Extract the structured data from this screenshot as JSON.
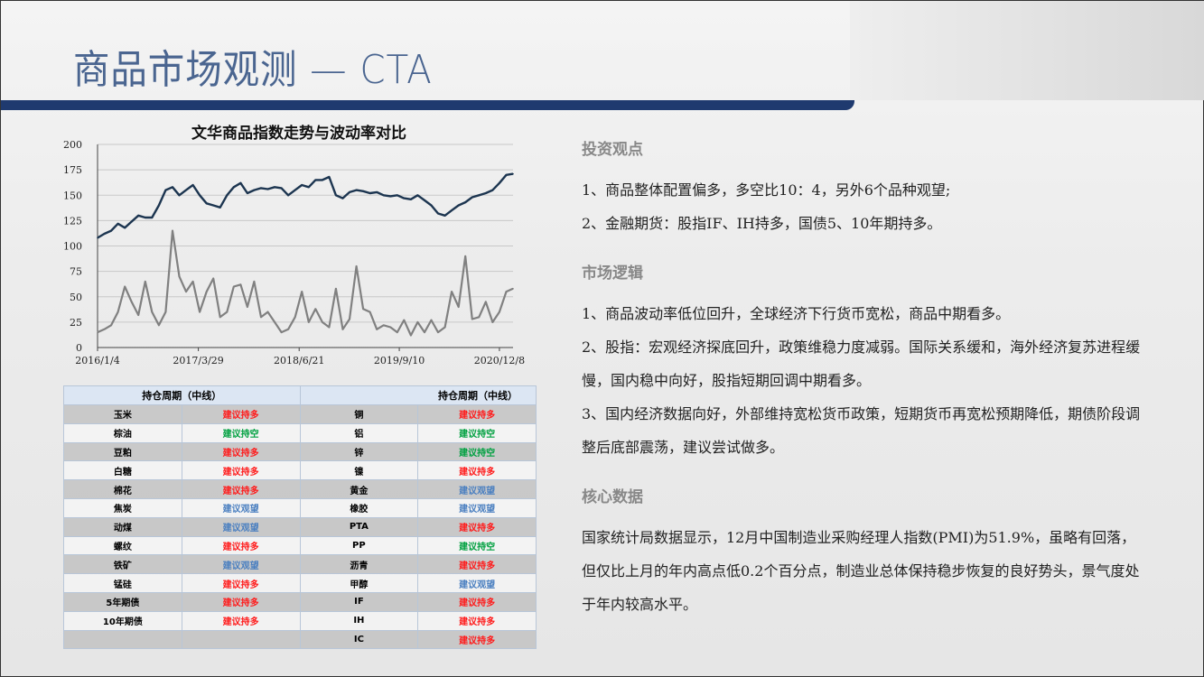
{
  "header": {
    "title": "商品市场观测 — CTA"
  },
  "chart_data": {
    "type": "line",
    "title": "文华商品指数走势与波动率对比",
    "ylim": [
      0,
      200
    ],
    "yticks": [
      "0",
      "25",
      "50",
      "75",
      "100",
      "125",
      "150",
      "175",
      "200"
    ],
    "xticks": [
      "2016/1/4",
      "2017/3/29",
      "2018/6/21",
      "2019/9/10",
      "2020/12/8"
    ],
    "grid": true,
    "x": [
      "2016-01",
      "2016-02",
      "2016-03",
      "2016-04",
      "2016-05",
      "2016-06",
      "2016-07",
      "2016-08",
      "2016-09",
      "2016-10",
      "2016-11",
      "2016-12",
      "2017-01",
      "2017-02",
      "2017-03",
      "2017-04",
      "2017-05",
      "2017-06",
      "2017-07",
      "2017-08",
      "2017-09",
      "2017-10",
      "2017-11",
      "2017-12",
      "2018-01",
      "2018-02",
      "2018-03",
      "2018-04",
      "2018-05",
      "2018-06",
      "2018-07",
      "2018-08",
      "2018-09",
      "2018-10",
      "2018-11",
      "2018-12",
      "2019-01",
      "2019-02",
      "2019-03",
      "2019-04",
      "2019-05",
      "2019-06",
      "2019-07",
      "2019-08",
      "2019-09",
      "2019-10",
      "2019-11",
      "2019-12",
      "2020-01",
      "2020-02",
      "2020-03",
      "2020-04",
      "2020-05",
      "2020-06",
      "2020-07",
      "2020-08",
      "2020-09",
      "2020-10",
      "2020-11",
      "2020-12",
      "2021-01",
      "2021-02"
    ],
    "series": [
      {
        "color": "#1c3550",
        "values": [
          108,
          112,
          115,
          122,
          118,
          124,
          130,
          128,
          128,
          140,
          155,
          158,
          150,
          155,
          160,
          150,
          142,
          140,
          138,
          150,
          158,
          162,
          152,
          155,
          157,
          156,
          158,
          157,
          150,
          155,
          160,
          158,
          165,
          165,
          168,
          150,
          147,
          153,
          155,
          154,
          152,
          153,
          150,
          149,
          150,
          147,
          146,
          150,
          145,
          140,
          132,
          130,
          135,
          140,
          143,
          148,
          150,
          152,
          155,
          162,
          170,
          171
        ]
      },
      {
        "color": "#808080",
        "values": [
          15,
          18,
          22,
          35,
          60,
          45,
          32,
          65,
          35,
          22,
          35,
          115,
          70,
          55,
          65,
          35,
          55,
          68,
          30,
          35,
          60,
          62,
          40,
          65,
          30,
          35,
          25,
          15,
          18,
          30,
          55,
          25,
          38,
          25,
          20,
          58,
          18,
          28,
          80,
          38,
          35,
          18,
          22,
          20,
          15,
          27,
          12,
          25,
          15,
          27,
          15,
          20,
          55,
          40,
          90,
          28,
          30,
          45,
          25,
          35,
          55,
          58
        ]
      }
    ]
  },
  "table": {
    "headers": [
      "持仓周期（中线）",
      "持仓周期（中线）"
    ],
    "rows": [
      [
        "玉米",
        "建议持多",
        "铜",
        "建议持多"
      ],
      [
        "棕油",
        "建议持空",
        "铝",
        "建议持空"
      ],
      [
        "豆粕",
        "建议持多",
        "锌",
        "建议持空"
      ],
      [
        "白糖",
        "建议持多",
        "镍",
        "建议持多"
      ],
      [
        "棉花",
        "建议持多",
        "黄金",
        "建议观望"
      ],
      [
        "焦炭",
        "建议观望",
        "橡胶",
        "建议观望"
      ],
      [
        "动煤",
        "建议观望",
        "PTA",
        "建议持多"
      ],
      [
        "螺纹",
        "建议持多",
        "PP",
        "建议持空"
      ],
      [
        "铁矿",
        "建议观望",
        "沥青",
        "建议持多"
      ],
      [
        "锰硅",
        "建议持多",
        "甲醇",
        "建议观望"
      ],
      [
        "5年期债",
        "建议持多",
        "IF",
        "建议持多"
      ],
      [
        "10年期债",
        "建议持多",
        "IH",
        "建议持多"
      ],
      [
        "",
        "",
        "IC",
        "建议持多"
      ]
    ],
    "colors": {
      "建议持多": "#ff1a1a",
      "建议持空": "#00a040",
      "建议观望": "#4a7fc0"
    }
  },
  "right": {
    "sections": [
      {
        "heading": "投资观点",
        "paras": [
          "1、商品整体配置偏多，多空比10：4，另外6个品种观望;",
          "2、金融期货：股指IF、IH持多，国债5、10年期持多。"
        ]
      },
      {
        "heading": "市场逻辑",
        "paras": [
          "1、商品波动率低位回升，全球经济下行货币宽松，商品中期看多。",
          "2、股指：宏观经济探底回升，政策维稳力度减弱。国际关系缓和，海外经济复苏进程缓慢，国内稳中向好，股指短期回调中期看多。",
          "3、国内经济数据向好，外部维持宽松货币政策，短期货币再宽松预期降低，期债阶段调整后底部震荡，建议尝试做多。"
        ]
      },
      {
        "heading": "核心数据",
        "paras": [
          "国家统计局数据显示，12月中国制造业采购经理人指数(PMI)为51.9%，虽略有回落，但仅比上月的年内高点低0.2个百分点，制造业总体保持稳步恢复的良好势头，景气度处于年内较高水平。"
        ]
      }
    ]
  }
}
